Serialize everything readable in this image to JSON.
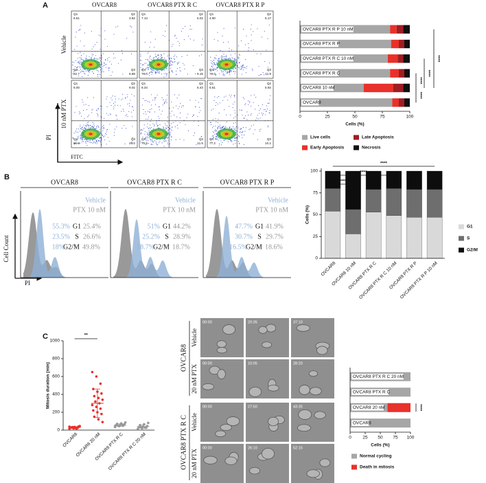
{
  "panels": {
    "a": "A",
    "b": "B",
    "c": "C"
  },
  "flow": {
    "columns": [
      "OVCAR8",
      "OVCAR8 PTX R C",
      "OVCAR8 PTX R P"
    ],
    "rows": [
      "Vehicle",
      "10 nM PTX"
    ],
    "y_label": "PI",
    "x_label": "FITC",
    "quadrants": [
      "Q1",
      "Q2",
      "Q4",
      "Q3"
    ],
    "values": [
      [
        [
          "6.61",
          "3.82",
          "82.7",
          "6.88"
        ],
        [
          "7.13",
          "5.02",
          "78.7",
          "9.15"
        ],
        [
          "4.90",
          "5.17",
          "78.0",
          "11.9"
        ]
      ],
      [
        [
          "8.00",
          "9.01",
          "56.8",
          "26.2"
        ],
        [
          "8.34",
          "5.43",
          "74.6",
          "11.6"
        ],
        [
          "6.61",
          "5.92",
          "77.2",
          "10.1"
        ]
      ]
    ]
  },
  "cycle": {
    "columns": [
      "OVCAR8",
      "OVCAR8 PTX R C",
      "OVCAR8 PTX R P"
    ],
    "vehicle": "Vehicle",
    "treated": "PTX 10 nM",
    "phases": [
      "G1",
      "S",
      "G2/M"
    ],
    "y_label": "Cell Count",
    "x_label": "PI",
    "values": [
      [
        [
          "55.3%",
          "25.4%"
        ],
        [
          "23.5%",
          "26.6%"
        ],
        [
          "18%",
          "49.8%"
        ]
      ],
      [
        [
          "51%",
          "44.2%"
        ],
        [
          "25.2%",
          "28.9%"
        ],
        [
          "18.7%",
          "18.7%"
        ]
      ],
      [
        [
          "47.7%",
          "41.9%"
        ],
        [
          "30.7%",
          "29.7%"
        ],
        [
          "16.5%",
          "18.6%"
        ]
      ]
    ]
  },
  "timelapse": {
    "groups": [
      "OVCAR8",
      "OVCAR8 PTX R C"
    ],
    "rows": [
      "Vehicle",
      "20 nM PTX",
      "Vehicle",
      "20 nM PTX"
    ],
    "times": [
      [
        "00:00",
        "20:35",
        "37:10"
      ],
      [
        "00:00",
        "10:05",
        "28:20"
      ],
      [
        "00:00",
        "27:50",
        "43:35"
      ],
      [
        "00:00",
        "26:10",
        "52:15"
      ]
    ]
  },
  "chart_data": [
    {
      "type": "bar",
      "horizontal": true,
      "stacked": true,
      "categories": [
        "OVCAR8 PTX R P 10 nM",
        "OVCAR8 PTX R P",
        "OVCAR8 PTX R C 10 nM",
        "OVCAR8 PTX R C",
        "OVCAR8 10 nM",
        "OVCAR8"
      ],
      "series": [
        {
          "name": "Live cells",
          "color": "#a6a6a6",
          "values": [
            82,
            83,
            80,
            82,
            58,
            84
          ]
        },
        {
          "name": "Early Apoptosis",
          "color": "#e8312a",
          "values": [
            6,
            7,
            9,
            8,
            27,
            6
          ]
        },
        {
          "name": "Late Apoptosis",
          "color": "#a01d22",
          "values": [
            6,
            5,
            5,
            5,
            9,
            5
          ]
        },
        {
          "name": "Necrosis",
          "color": "#111111",
          "values": [
            6,
            5,
            6,
            5,
            6,
            5
          ]
        }
      ],
      "x_label": "Cells (%)",
      "xlim": [
        0,
        100
      ],
      "xticks": [
        0,
        25,
        50,
        75,
        100
      ],
      "annotations": [
        "****",
        "****",
        "****",
        "****"
      ]
    },
    {
      "type": "bar",
      "horizontal": false,
      "stacked": true,
      "categories": [
        "OVCAR8",
        "OVCAR8 10 nM",
        "OVCAR8 PTX R C",
        "OVCAR8 PTX R C 10 nM",
        "OVCAR8 PTX R P",
        "OVCAR8 PTX R P 10 nM"
      ],
      "series": [
        {
          "name": "G1",
          "color": "#d9d9d9",
          "values": [
            54,
            28,
            53,
            49,
            47,
            47
          ]
        },
        {
          "name": "S",
          "color": "#6e6e6e",
          "values": [
            26,
            28,
            26,
            31,
            32,
            32
          ]
        },
        {
          "name": "G2/M",
          "color": "#0d0d0d",
          "values": [
            20,
            44,
            21,
            20,
            21,
            21
          ]
        }
      ],
      "y_label": "Cells (%)",
      "ylim": [
        0,
        100
      ],
      "yticks": [
        0,
        25,
        50,
        75,
        100
      ],
      "annotations": [
        "****",
        "****",
        "****"
      ]
    },
    {
      "type": "strip",
      "categories": [
        "OVCAR8",
        "OVCAR8 20 nM",
        "OVCAR8 PTX R C",
        "OVCAR8 PTX R C 20 nM"
      ],
      "colors": [
        "#e8312a",
        "#e8312a",
        "#999999",
        "#999999"
      ],
      "values": [
        [
          15,
          20,
          25,
          30,
          35,
          40,
          28,
          22,
          45,
          33,
          18,
          38,
          26,
          30
        ],
        [
          650,
          600,
          520,
          460,
          430,
          410,
          380,
          360,
          340,
          320,
          300,
          280,
          260,
          240,
          220,
          200,
          180,
          150,
          120,
          90
        ],
        [
          35,
          45,
          50,
          55,
          60,
          65,
          70,
          75,
          85,
          48,
          58,
          40
        ],
        [
          15,
          20,
          25,
          30,
          40,
          45,
          55,
          65,
          80,
          35,
          28
        ]
      ],
      "mean": [
        30,
        300,
        55,
        40
      ],
      "sd": [
        10,
        160,
        15,
        20
      ],
      "y_label": "Mitosis duration (min)",
      "ylim": [
        0,
        1000
      ],
      "yticks": [
        0,
        200,
        400,
        600,
        800,
        1000
      ],
      "annotations": [
        "**"
      ]
    },
    {
      "type": "bar",
      "horizontal": true,
      "stacked": true,
      "categories": [
        "OVCAR8 PTX R C 20 nM",
        "OVCAR8 PTX R C",
        "OVCAR8 20 nM",
        "OVCAR8"
      ],
      "series": [
        {
          "name": "Normal cycling",
          "color": "#a6a6a6",
          "values": [
            100,
            100,
            62,
            100
          ]
        },
        {
          "name": "Death in mitosis",
          "color": "#e8312a",
          "values": [
            0,
            0,
            38,
            0
          ]
        }
      ],
      "x_label": "Cells (%)",
      "xlim": [
        0,
        100
      ],
      "xticks": [
        0,
        25,
        50,
        75,
        100
      ],
      "annotations": [
        "****"
      ]
    }
  ]
}
